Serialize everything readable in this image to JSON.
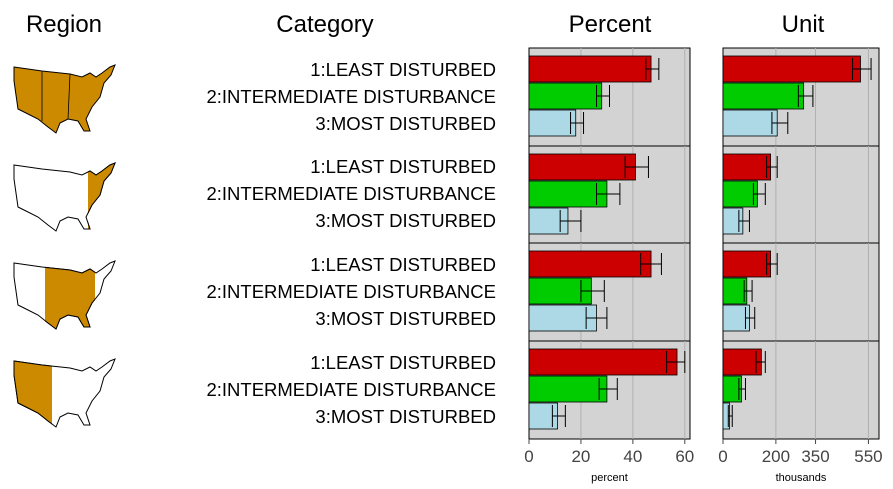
{
  "headers": {
    "region": "Region",
    "category": "Category",
    "percent": "Percent",
    "unit": "Unit"
  },
  "categories": [
    "1:LEAST DISTURBED",
    "2:INTERMEDIATE DISTURBANCE",
    "3:MOST DISTURBED"
  ],
  "colors": {
    "cat1": "#cc0000",
    "cat2": "#00cc00",
    "cat3": "#add8e6",
    "panel_bg": "#d3d3d3",
    "grid": "#b0b0b0",
    "map_fill": "#cc8a00"
  },
  "regions": [
    {
      "map_icon": "us-map-conterminous-icon"
    },
    {
      "map_icon": "us-map-east-icon"
    },
    {
      "map_icon": "us-map-plains-icon"
    },
    {
      "map_icon": "us-map-west-icon"
    }
  ],
  "chart_data": [
    {
      "type": "bar",
      "title": "Percent",
      "xlabel": "percent",
      "xlim": [
        0,
        62
      ],
      "xticks": [
        0,
        20,
        40,
        60
      ],
      "categories": [
        "1:LEAST DISTURBED",
        "2:INTERMEDIATE DISTURBANCE",
        "3:MOST DISTURBED"
      ],
      "panels": [
        {
          "values": [
            47,
            28,
            18
          ],
          "lower": [
            45,
            26,
            16
          ],
          "upper": [
            50,
            31,
            21
          ]
        },
        {
          "values": [
            41,
            30,
            15
          ],
          "lower": [
            37,
            26,
            12
          ],
          "upper": [
            46,
            35,
            20
          ]
        },
        {
          "values": [
            47,
            24,
            26
          ],
          "lower": [
            43,
            20,
            22
          ],
          "upper": [
            51,
            29,
            30
          ]
        },
        {
          "values": [
            57,
            30,
            11
          ],
          "lower": [
            53,
            27,
            9
          ],
          "upper": [
            60,
            34,
            14
          ]
        }
      ]
    },
    {
      "type": "bar",
      "title": "Unit",
      "xlabel": "thousands",
      "xlim": [
        0,
        590
      ],
      "xticks": [
        0,
        200,
        350,
        550
      ],
      "categories": [
        "1:LEAST DISTURBED",
        "2:INTERMEDIATE DISTURBANCE",
        "3:MOST DISTURBED"
      ],
      "panels": [
        {
          "values": [
            520,
            305,
            205
          ],
          "lower": [
            490,
            285,
            185
          ],
          "upper": [
            560,
            340,
            245
          ]
        },
        {
          "values": [
            180,
            130,
            75
          ],
          "lower": [
            165,
            115,
            60
          ],
          "upper": [
            205,
            160,
            100
          ]
        },
        {
          "values": [
            180,
            90,
            100
          ],
          "lower": [
            165,
            80,
            85
          ],
          "upper": [
            205,
            110,
            120
          ]
        },
        {
          "values": [
            145,
            70,
            25
          ],
          "lower": [
            125,
            60,
            20
          ],
          "upper": [
            160,
            85,
            35
          ]
        }
      ]
    }
  ]
}
